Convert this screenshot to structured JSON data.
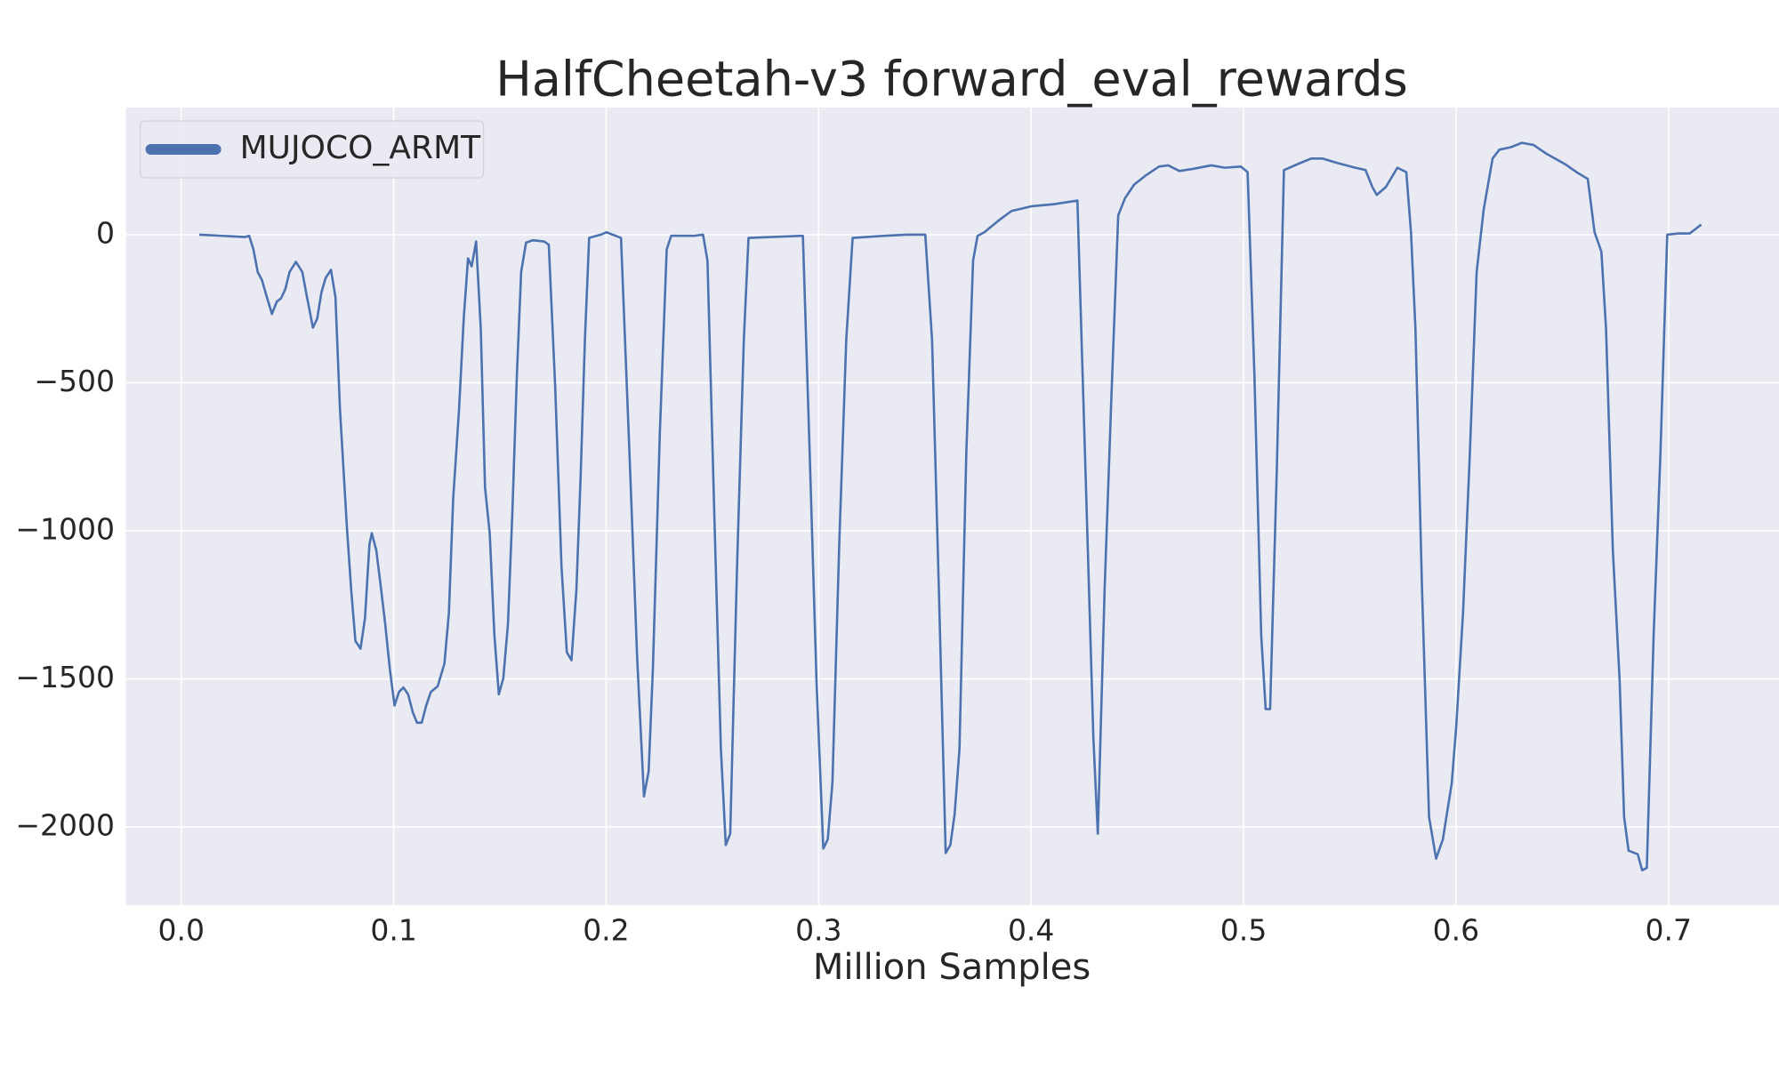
{
  "chart_data": {
    "type": "line",
    "title": "HalfCheetah-v3 forward_eval_rewards",
    "x_label": "Million Samples",
    "legend": "upper left",
    "grid": true,
    "xlim": [
      -0.026,
      0.752
    ],
    "ylim": [
      -2264,
      429
    ],
    "xticks": [
      {
        "value": 0,
        "label": "0.0"
      },
      0.1,
      0.2,
      0.3,
      0.4,
      0.5,
      0.6,
      0.7
    ],
    "yticks": [
      0,
      {
        "value": -500,
        "label": "−500"
      },
      {
        "value": -1000,
        "label": "−1000"
      },
      {
        "value": -1500,
        "label": "−1500"
      },
      {
        "value": -2000,
        "label": "−2000"
      }
    ],
    "x": [
      0.0085,
      0.0299,
      0.032,
      0.034,
      0.036,
      0.038,
      0.04,
      0.0427,
      0.045,
      0.047,
      0.049,
      0.051,
      0.054,
      0.057,
      0.059,
      0.062,
      0.064,
      0.066,
      0.068,
      0.0705,
      0.0726,
      0.0747,
      0.078,
      0.08,
      0.082,
      0.0844,
      0.0865,
      0.0886,
      0.0897,
      0.0918,
      0.094,
      0.096,
      0.0982,
      0.1004,
      0.1025,
      0.1046,
      0.1068,
      0.109,
      0.111,
      0.1132,
      0.1153,
      0.1175,
      0.1207,
      0.1239,
      0.126,
      0.128,
      0.1308,
      0.133,
      0.135,
      0.1367,
      0.1388,
      0.141,
      0.143,
      0.1452,
      0.1474,
      0.1495,
      0.1516,
      0.1538,
      0.1559,
      0.158,
      0.16,
      0.1623,
      0.1655,
      0.1708,
      0.173,
      0.176,
      0.179,
      0.1815,
      0.1837,
      0.186,
      0.188,
      0.19,
      0.192,
      0.1975,
      0.2002,
      0.207,
      0.2114,
      0.2146,
      0.2178,
      0.22,
      0.222,
      0.2253,
      0.2285,
      0.2306,
      0.2413,
      0.2456,
      0.2477,
      0.251,
      0.254,
      0.2563,
      0.2584,
      0.2616,
      0.2648,
      0.267,
      0.2776,
      0.2926,
      0.2958,
      0.299,
      0.3022,
      0.3043,
      0.3065,
      0.3097,
      0.313,
      0.316,
      0.331,
      0.3417,
      0.3502,
      0.3534,
      0.3566,
      0.3598,
      0.362,
      0.364,
      0.3663,
      0.3695,
      0.3727,
      0.3748,
      0.378,
      0.3844,
      0.3908,
      0.4004,
      0.411,
      0.4218,
      0.426,
      0.4293,
      0.4314,
      0.4346,
      0.4378,
      0.441,
      0.4442,
      0.4485,
      0.4538,
      0.4602,
      0.4645,
      0.4698,
      0.4762,
      0.4848,
      0.4912,
      0.4987,
      0.5019,
      0.5051,
      0.5083,
      0.5104,
      0.5125,
      0.5157,
      0.519,
      0.5264,
      0.5318,
      0.5371,
      0.5446,
      0.5526,
      0.5574,
      0.5606,
      0.5627,
      0.567,
      0.5724,
      0.5766,
      0.5788,
      0.5809,
      0.584,
      0.5873,
      0.5906,
      0.5938,
      0.598,
      0.6001,
      0.6033,
      0.6065,
      0.6097,
      0.613,
      0.6172,
      0.6204,
      0.6257,
      0.631,
      0.6364,
      0.6428,
      0.6513,
      0.6567,
      0.662,
      0.6652,
      0.6684,
      0.6706,
      0.6738,
      0.677,
      0.6791,
      0.6812,
      0.6855,
      0.6876,
      0.6898,
      0.693,
      0.6962,
      0.6994,
      0.7047,
      0.71,
      0.7154
    ],
    "series": [
      {
        "name": "MUJOCO_ARMT",
        "color": "#4c72b0",
        "values": [
          0,
          -8,
          -4,
          -50,
          -126,
          -153,
          -203,
          -268,
          -226,
          -215,
          -184,
          -126,
          -92,
          -126,
          -203,
          -314,
          -284,
          -195,
          -146,
          -119,
          -211,
          -586,
          -989,
          -1199,
          -1372,
          -1398,
          -1295,
          -1046,
          -1008,
          -1065,
          -1192,
          -1314,
          -1467,
          -1590,
          -1544,
          -1529,
          -1552,
          -1613,
          -1648,
          -1648,
          -1590,
          -1544,
          -1525,
          -1448,
          -1276,
          -893,
          -586,
          -280,
          -80,
          -107,
          -23,
          -318,
          -854,
          -1008,
          -1352,
          -1552,
          -1498,
          -1314,
          -931,
          -471,
          -126,
          -27,
          -19,
          -23,
          -34,
          -510,
          -1123,
          -1410,
          -1437,
          -1199,
          -816,
          -356,
          -11,
          0,
          8,
          -11,
          -816,
          -1429,
          -1897,
          -1812,
          -1467,
          -663,
          -50,
          -4,
          -4,
          0,
          -88,
          -969,
          -1736,
          -2061,
          -2023,
          -1123,
          -356,
          -11,
          -8,
          -4,
          -739,
          -1506,
          -2073,
          -2042,
          -1851,
          -1046,
          -356,
          -11,
          -4,
          0,
          0,
          -356,
          -1199,
          -2088,
          -2061,
          -1958,
          -1736,
          -739,
          -88,
          -4,
          8,
          46,
          80,
          96,
          103,
          115,
          -893,
          -1697,
          -2023,
          -1199,
          -548,
          65,
          123,
          169,
          199,
          230,
          234,
          215,
          222,
          234,
          226,
          230,
          211,
          -471,
          -1352,
          -1602,
          -1602,
          -778,
          218,
          241,
          257,
          257,
          241,
          226,
          218,
          161,
          134,
          161,
          226,
          211,
          8,
          -318,
          -1199,
          -1966,
          -2107,
          -2042,
          -1851,
          -1659,
          -1276,
          -739,
          -126,
          84,
          257,
          287,
          295,
          310,
          303,
          272,
          238,
          211,
          188,
          8,
          -57,
          -318,
          -1065,
          -1506,
          -1966,
          -2080,
          -2092,
          -2146,
          -2138,
          -1352,
          -739,
          0,
          4,
          4,
          34
        ]
      }
    ]
  }
}
